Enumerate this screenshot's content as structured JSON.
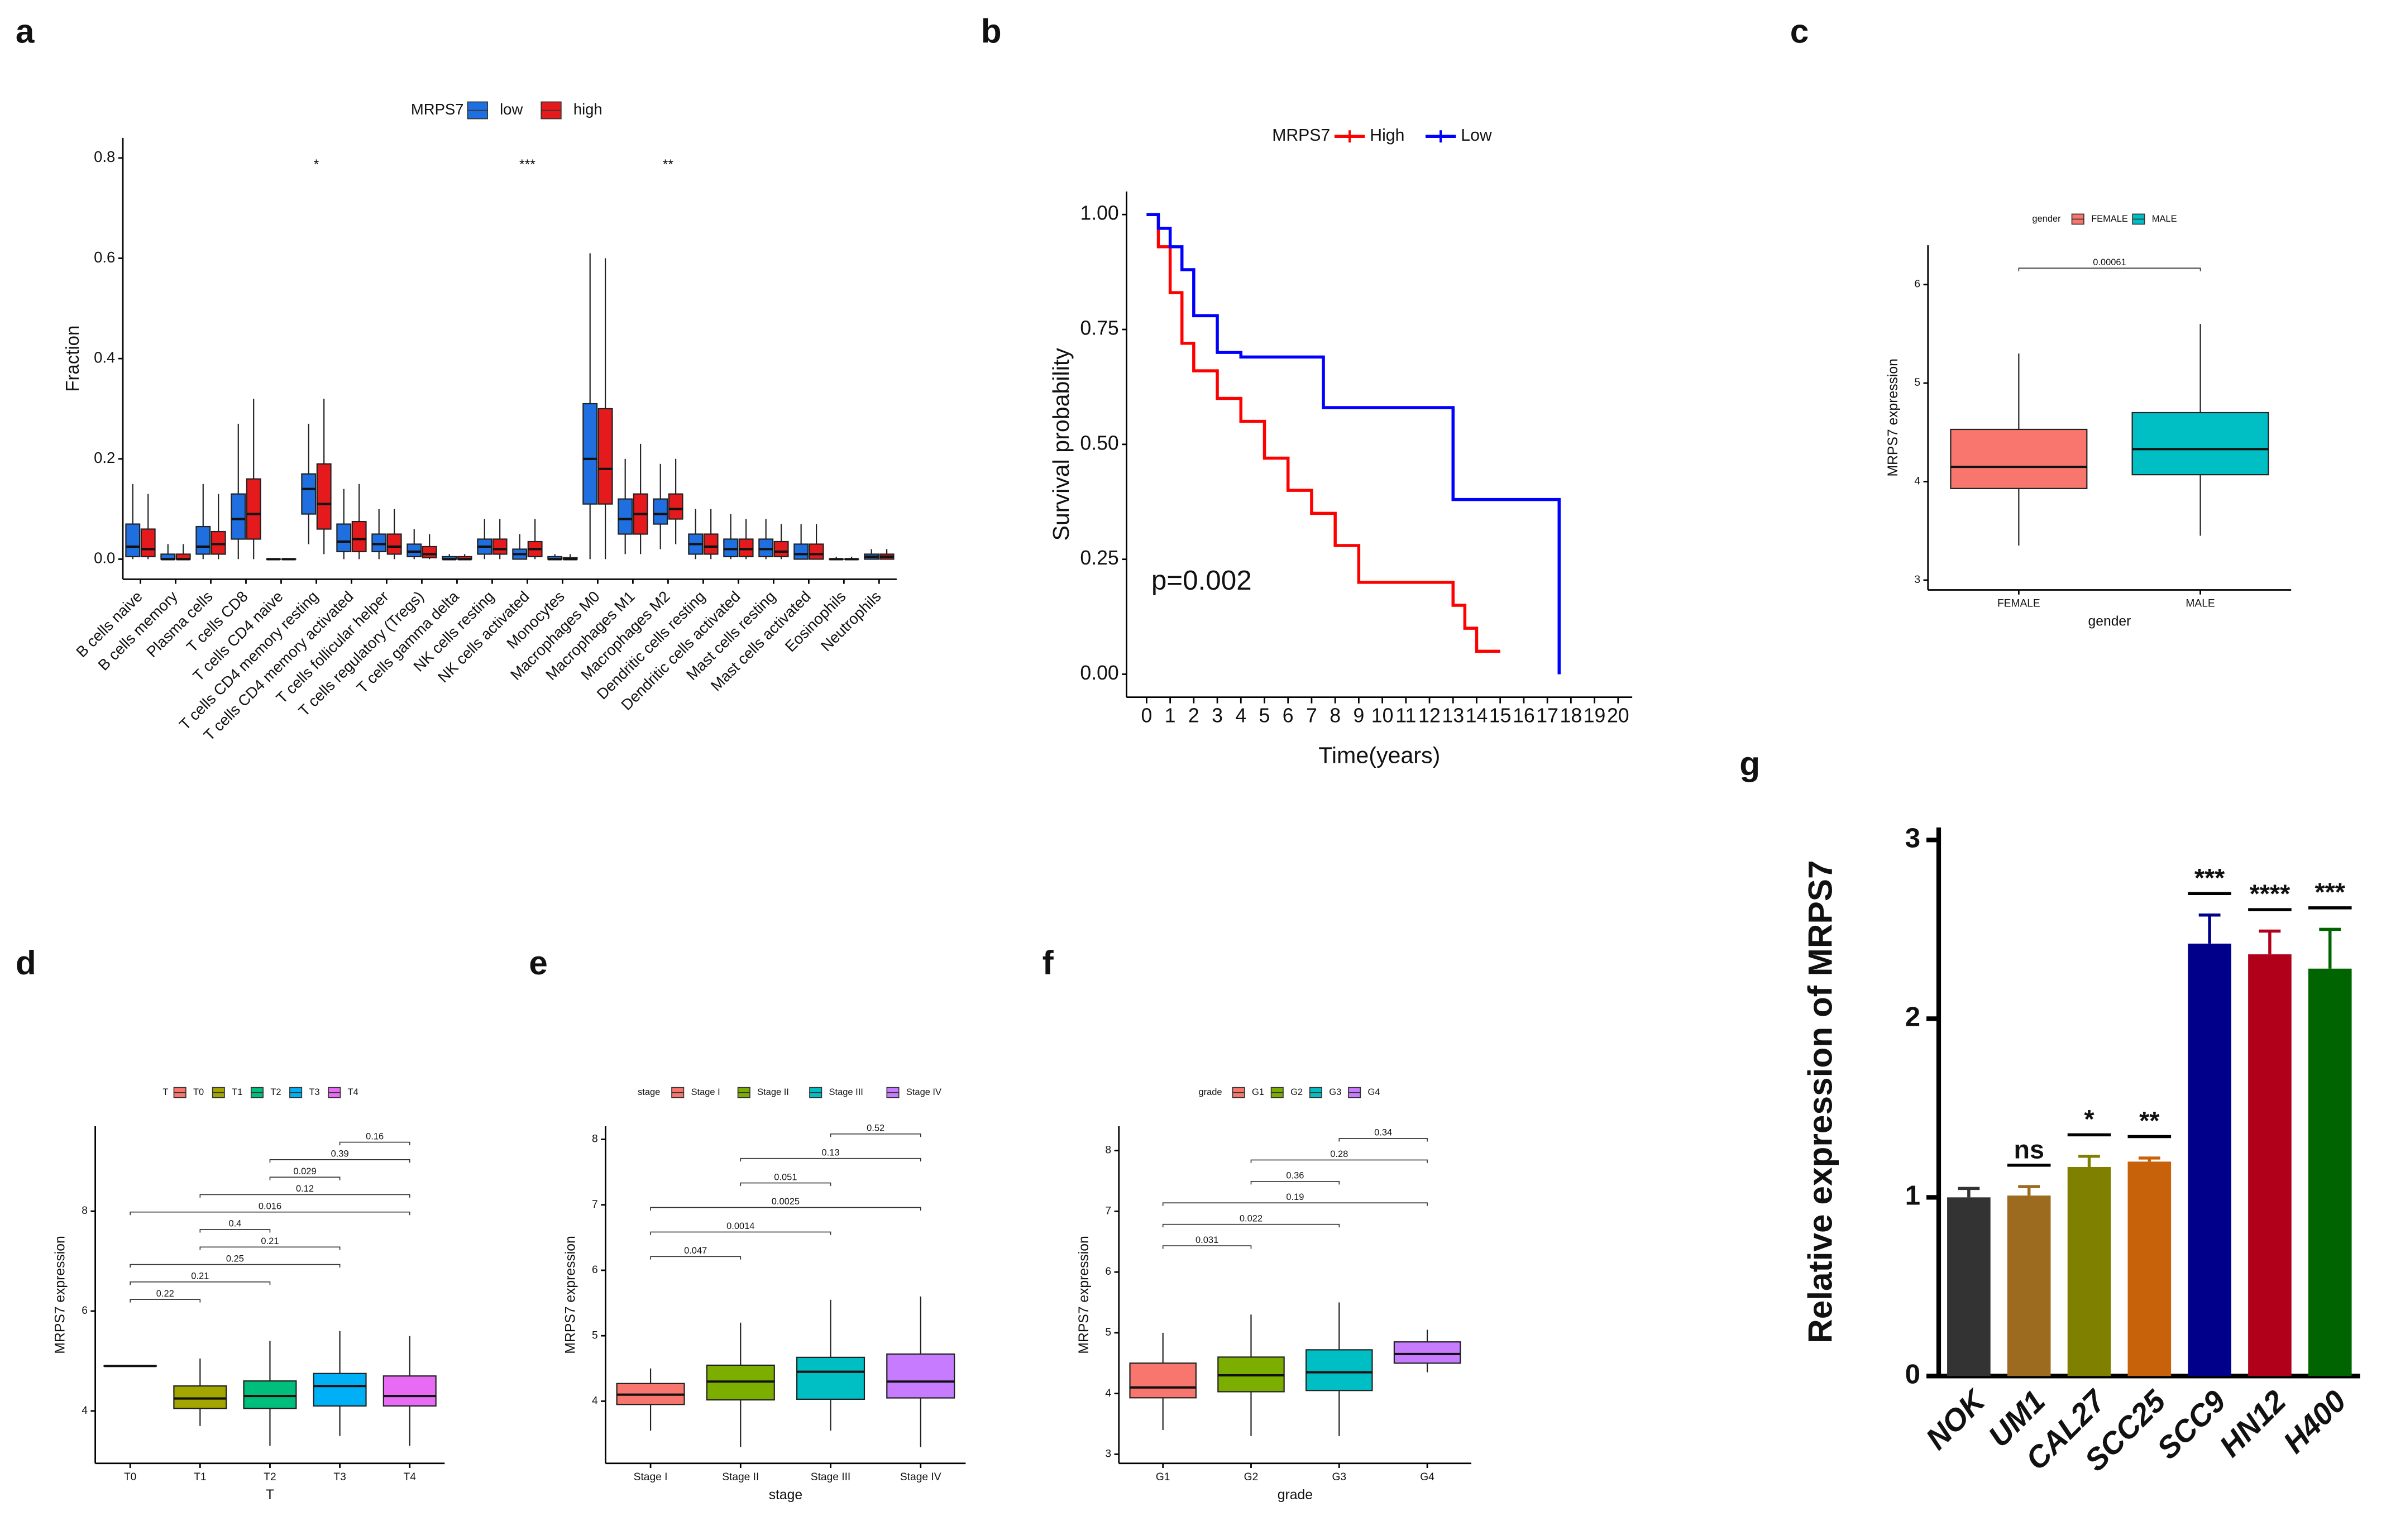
{
  "chart_data": [
    {
      "type": "box",
      "panel": "a",
      "legend_title": "MRPS7",
      "ylabel": "Fraction",
      "categories": [
        "B cells naive",
        "B cells memory",
        "Plasma cells",
        "T cells CD8",
        "T cells CD4 naive",
        "T cells CD4 memory resting",
        "T cells CD4 memory activated",
        "T cells follicular helper",
        "T cells regulatory (Tregs)",
        "T cells gamma delta",
        "NK cells resting",
        "NK cells activated",
        "Monocytes",
        "Macrophages M0",
        "Macrophages M1",
        "Macrophages M2",
        "Dendritic cells resting",
        "Dendritic cells activated",
        "Mast cells resting",
        "Mast cells activated",
        "Eosinophils",
        "Neutrophils"
      ],
      "significance": [
        null,
        null,
        null,
        null,
        null,
        "*",
        null,
        null,
        null,
        null,
        null,
        "***",
        null,
        null,
        null,
        "**",
        null,
        null,
        null,
        null,
        null,
        null
      ],
      "ylim": [
        -0.04,
        0.84
      ],
      "yticks": [
        {
          "value": 0,
          "label": "0.0"
        },
        {
          "value": 0.2,
          "label": "0.2"
        },
        {
          "value": 0.4,
          "label": "0.4"
        },
        {
          "value": 0.6,
          "label": "0.6"
        },
        {
          "value": 0.8,
          "label": "0.8"
        }
      ],
      "series": [
        {
          "name": "low",
          "color": "#1f6fe0",
          "boxes": [
            {
              "whislo": 0,
              "q1": 0.005,
              "med": 0.025,
              "q3": 0.07,
              "whishi": 0.15
            },
            {
              "whislo": 0,
              "q1": 0,
              "med": 0,
              "q3": 0.01,
              "whishi": 0.03
            },
            {
              "whislo": 0,
              "q1": 0.01,
              "med": 0.025,
              "q3": 0.065,
              "whishi": 0.15
            },
            {
              "whislo": 0,
              "q1": 0.04,
              "med": 0.08,
              "q3": 0.13,
              "whishi": 0.27
            },
            {
              "whislo": 0,
              "q1": 0,
              "med": 0,
              "q3": 0,
              "whishi": 0
            },
            {
              "whislo": 0.03,
              "q1": 0.09,
              "med": 0.14,
              "q3": 0.17,
              "whishi": 0.27
            },
            {
              "whislo": 0,
              "q1": 0.015,
              "med": 0.035,
              "q3": 0.07,
              "whishi": 0.14
            },
            {
              "whislo": 0,
              "q1": 0.015,
              "med": 0.03,
              "q3": 0.05,
              "whishi": 0.1
            },
            {
              "whislo": 0,
              "q1": 0.005,
              "med": 0.015,
              "q3": 0.03,
              "whishi": 0.06
            },
            {
              "whislo": 0,
              "q1": 0,
              "med": 0,
              "q3": 0.005,
              "whishi": 0.01
            },
            {
              "whislo": 0,
              "q1": 0.01,
              "med": 0.025,
              "q3": 0.04,
              "whishi": 0.08
            },
            {
              "whislo": 0,
              "q1": 0,
              "med": 0.01,
              "q3": 0.02,
              "whishi": 0.05
            },
            {
              "whislo": 0,
              "q1": 0,
              "med": 0,
              "q3": 0.005,
              "whishi": 0.01
            },
            {
              "whislo": 0,
              "q1": 0.11,
              "med": 0.2,
              "q3": 0.31,
              "whishi": 0.61
            },
            {
              "whislo": 0.01,
              "q1": 0.05,
              "med": 0.08,
              "q3": 0.12,
              "whishi": 0.2
            },
            {
              "whislo": 0.02,
              "q1": 0.07,
              "med": 0.09,
              "q3": 0.12,
              "whishi": 0.19
            },
            {
              "whislo": 0,
              "q1": 0.01,
              "med": 0.03,
              "q3": 0.05,
              "whishi": 0.1
            },
            {
              "whislo": 0,
              "q1": 0.005,
              "med": 0.02,
              "q3": 0.04,
              "whishi": 0.09
            },
            {
              "whislo": 0,
              "q1": 0.005,
              "med": 0.02,
              "q3": 0.04,
              "whishi": 0.08
            },
            {
              "whislo": 0,
              "q1": 0,
              "med": 0.01,
              "q3": 0.03,
              "whishi": 0.07
            },
            {
              "whislo": 0,
              "q1": 0,
              "med": 0,
              "q3": 0,
              "whishi": 0.005
            },
            {
              "whislo": 0,
              "q1": 0,
              "med": 0.005,
              "q3": 0.01,
              "whishi": 0.02
            }
          ]
        },
        {
          "name": "high",
          "color": "#e41a1c",
          "boxes": [
            {
              "whislo": 0,
              "q1": 0.005,
              "med": 0.02,
              "q3": 0.06,
              "whishi": 0.13
            },
            {
              "whislo": 0,
              "q1": 0,
              "med": 0,
              "q3": 0.01,
              "whishi": 0.03
            },
            {
              "whislo": 0,
              "q1": 0.01,
              "med": 0.03,
              "q3": 0.055,
              "whishi": 0.13
            },
            {
              "whislo": 0,
              "q1": 0.04,
              "med": 0.09,
              "q3": 0.16,
              "whishi": 0.32
            },
            {
              "whislo": 0,
              "q1": 0,
              "med": 0,
              "q3": 0,
              "whishi": 0
            },
            {
              "whislo": 0.01,
              "q1": 0.06,
              "med": 0.11,
              "q3": 0.19,
              "whishi": 0.32
            },
            {
              "whislo": 0,
              "q1": 0.015,
              "med": 0.04,
              "q3": 0.075,
              "whishi": 0.15
            },
            {
              "whislo": 0,
              "q1": 0.01,
              "med": 0.025,
              "q3": 0.05,
              "whishi": 0.1
            },
            {
              "whislo": 0,
              "q1": 0.003,
              "med": 0.01,
              "q3": 0.025,
              "whishi": 0.05
            },
            {
              "whislo": 0,
              "q1": 0,
              "med": 0,
              "q3": 0.005,
              "whishi": 0.01
            },
            {
              "whislo": 0,
              "q1": 0.01,
              "med": 0.02,
              "q3": 0.04,
              "whishi": 0.08
            },
            {
              "whislo": 0,
              "q1": 0.005,
              "med": 0.02,
              "q3": 0.035,
              "whishi": 0.08
            },
            {
              "whislo": 0,
              "q1": 0,
              "med": 0,
              "q3": 0.003,
              "whishi": 0.01
            },
            {
              "whislo": 0,
              "q1": 0.11,
              "med": 0.18,
              "q3": 0.3,
              "whishi": 0.6
            },
            {
              "whislo": 0.01,
              "q1": 0.05,
              "med": 0.09,
              "q3": 0.13,
              "whishi": 0.23
            },
            {
              "whislo": 0.03,
              "q1": 0.08,
              "med": 0.1,
              "q3": 0.13,
              "whishi": 0.2
            },
            {
              "whislo": 0,
              "q1": 0.01,
              "med": 0.025,
              "q3": 0.05,
              "whishi": 0.1
            },
            {
              "whislo": 0,
              "q1": 0.005,
              "med": 0.02,
              "q3": 0.04,
              "whishi": 0.08
            },
            {
              "whislo": 0,
              "q1": 0.005,
              "med": 0.015,
              "q3": 0.035,
              "whishi": 0.07
            },
            {
              "whislo": 0,
              "q1": 0,
              "med": 0.01,
              "q3": 0.03,
              "whishi": 0.07
            },
            {
              "whislo": 0,
              "q1": 0,
              "med": 0,
              "q3": 0,
              "whishi": 0.005
            },
            {
              "whislo": 0,
              "q1": 0,
              "med": 0.005,
              "q3": 0.01,
              "whishi": 0.02
            }
          ]
        }
      ]
    },
    {
      "type": "line",
      "step": true,
      "panel": "b",
      "legend_title": "MRPS7",
      "xlabel": "Time(years)",
      "ylabel": "Survival probability",
      "annotation": "p=0.002",
      "xlim": [
        -0.85,
        20.6
      ],
      "xticks": [
        0,
        1,
        2,
        3,
        4,
        5,
        6,
        7,
        8,
        9,
        10,
        11,
        12,
        13,
        14,
        15,
        16,
        17,
        18,
        19,
        20
      ],
      "ylim": [
        -0.05,
        1.05
      ],
      "yticks": [
        {
          "value": 0,
          "label": "0.00"
        },
        {
          "value": 0.25,
          "label": "0.25"
        },
        {
          "value": 0.5,
          "label": "0.50"
        },
        {
          "value": 0.75,
          "label": "0.75"
        },
        {
          "value": 1,
          "label": "1.00"
        }
      ],
      "series": [
        {
          "name": "High",
          "color": "#ff0000",
          "x": [
            0,
            0.5,
            1,
            1.5,
            2,
            3,
            4,
            5,
            6,
            7,
            8,
            9,
            13,
            13.5,
            14,
            15
          ],
          "values": [
            1,
            0.93,
            0.83,
            0.72,
            0.66,
            0.6,
            0.55,
            0.47,
            0.4,
            0.35,
            0.28,
            0.2,
            0.15,
            0.1,
            0.05,
            0.05
          ]
        },
        {
          "name": "Low",
          "color": "#0000ff",
          "x": [
            0,
            0.5,
            1,
            1.5,
            2,
            3,
            4,
            7.5,
            13,
            17.5,
            17.5
          ],
          "values": [
            1,
            0.97,
            0.93,
            0.88,
            0.78,
            0.7,
            0.69,
            0.58,
            0.38,
            0.38,
            0
          ]
        }
      ]
    },
    {
      "type": "box",
      "panel": "c",
      "legend_title": "gender",
      "xlabel": "gender",
      "ylabel": "MRPS7 expression",
      "categories": [
        "FEMALE",
        "MALE"
      ],
      "colors": [
        "#f8766d",
        "#00bfc4"
      ],
      "ylim": [
        2.9,
        6.4
      ],
      "yticks": [
        3,
        4,
        5,
        6
      ],
      "boxes": [
        {
          "whislo": 3.35,
          "q1": 3.93,
          "med": 4.15,
          "q3": 4.53,
          "whishi": 5.3
        },
        {
          "whislo": 3.45,
          "q1": 4.07,
          "med": 4.33,
          "q3": 4.7,
          "whishi": 5.6
        }
      ],
      "comparisons": [
        {
          "groups": [
            0,
            1
          ],
          "p": 0.00061
        }
      ]
    },
    {
      "type": "box",
      "panel": "d",
      "legend_title": "T",
      "xlabel": "T",
      "ylabel": "MRPS7 expression",
      "categories": [
        "T0",
        "T1",
        "T2",
        "T3",
        "T4"
      ],
      "colors": [
        "#f8766d",
        "#a3a500",
        "#00bf7d",
        "#00b0f6",
        "#e76bf3"
      ],
      "ylim": [
        2.95,
        9.7
      ],
      "yticks": [
        4,
        6,
        8
      ],
      "boxes": [
        {
          "whislo": 4.9,
          "q1": 4.9,
          "med": 4.9,
          "q3": 4.9,
          "whishi": 4.9
        },
        {
          "whislo": 3.7,
          "q1": 4.05,
          "med": 4.25,
          "q3": 4.5,
          "whishi": 5.05
        },
        {
          "whislo": 3.3,
          "q1": 4.05,
          "med": 4.3,
          "q3": 4.6,
          "whishi": 5.4
        },
        {
          "whislo": 3.5,
          "q1": 4.1,
          "med": 4.5,
          "q3": 4.75,
          "whishi": 5.6
        },
        {
          "whislo": 3.3,
          "q1": 4.1,
          "med": 4.3,
          "q3": 4.7,
          "whishi": 5.5
        }
      ],
      "comparisons": [
        {
          "groups": [
            0,
            1
          ],
          "p": 0.22
        },
        {
          "groups": [
            0,
            2
          ],
          "p": 0.21
        },
        {
          "groups": [
            0,
            3
          ],
          "p": 0.25
        },
        {
          "groups": [
            1,
            3
          ],
          "p": 0.21
        },
        {
          "groups": [
            1,
            2
          ],
          "p": 0.4
        },
        {
          "groups": [
            0,
            4
          ],
          "p": 0.016
        },
        {
          "groups": [
            1,
            4
          ],
          "p": 0.12
        },
        {
          "groups": [
            2,
            3
          ],
          "p": 0.029
        },
        {
          "groups": [
            2,
            4
          ],
          "p": 0.39
        },
        {
          "groups": [
            3,
            4
          ],
          "p": 0.16
        }
      ]
    },
    {
      "type": "box",
      "panel": "e",
      "legend_title": "stage",
      "xlabel": "stage",
      "ylabel": "MRPS7 expression",
      "categories": [
        "Stage I",
        "Stage II",
        "Stage III",
        "Stage IV"
      ],
      "colors": [
        "#f8766d",
        "#7cae00",
        "#00bfc4",
        "#c77cff"
      ],
      "ylim": [
        3.05,
        8.2
      ],
      "yticks": [
        4,
        5,
        6,
        7,
        8
      ],
      "boxes": [
        {
          "whislo": 3.55,
          "q1": 3.95,
          "med": 4.1,
          "q3": 4.27,
          "whishi": 4.5
        },
        {
          "whislo": 3.3,
          "q1": 4.02,
          "med": 4.3,
          "q3": 4.55,
          "whishi": 5.2
        },
        {
          "whislo": 3.55,
          "q1": 4.03,
          "med": 4.45,
          "q3": 4.67,
          "whishi": 5.55
        },
        {
          "whislo": 3.3,
          "q1": 4.05,
          "med": 4.3,
          "q3": 4.72,
          "whishi": 5.6
        }
      ],
      "comparisons": [
        {
          "groups": [
            0,
            1
          ],
          "p": 0.047
        },
        {
          "groups": [
            0,
            2
          ],
          "p": 0.0014
        },
        {
          "groups": [
            0,
            3
          ],
          "p": 0.0025
        },
        {
          "groups": [
            1,
            2
          ],
          "p": 0.051
        },
        {
          "groups": [
            1,
            3
          ],
          "p": 0.13
        },
        {
          "groups": [
            2,
            3
          ],
          "p": 0.52
        }
      ]
    },
    {
      "type": "box",
      "panel": "f",
      "legend_title": "grade",
      "xlabel": "grade",
      "ylabel": "MRPS7 expression",
      "categories": [
        "G1",
        "G2",
        "G3",
        "G4"
      ],
      "colors": [
        "#f8766d",
        "#7cae00",
        "#00bfc4",
        "#c77cff"
      ],
      "ylim": [
        2.85,
        8.4
      ],
      "yticks": [
        3,
        4,
        5,
        6,
        7,
        8
      ],
      "boxes": [
        {
          "whislo": 3.4,
          "q1": 3.93,
          "med": 4.1,
          "q3": 4.5,
          "whishi": 5.0
        },
        {
          "whislo": 3.3,
          "q1": 4.03,
          "med": 4.3,
          "q3": 4.6,
          "whishi": 5.3
        },
        {
          "whislo": 3.3,
          "q1": 4.05,
          "med": 4.35,
          "q3": 4.72,
          "whishi": 5.5
        },
        {
          "whislo": 4.35,
          "q1": 4.5,
          "med": 4.65,
          "q3": 4.85,
          "whishi": 5.05
        }
      ],
      "comparisons": [
        {
          "groups": [
            0,
            1
          ],
          "p": 0.031
        },
        {
          "groups": [
            0,
            2
          ],
          "p": 0.022
        },
        {
          "groups": [
            0,
            3
          ],
          "p": 0.19
        },
        {
          "groups": [
            1,
            2
          ],
          "p": 0.36
        },
        {
          "groups": [
            1,
            3
          ],
          "p": 0.28
        },
        {
          "groups": [
            2,
            3
          ],
          "p": 0.34
        }
      ]
    },
    {
      "type": "bar",
      "panel": "g",
      "ylabel": "Relative expression of MRPS7",
      "categories": [
        "NOK",
        "UM1",
        "CAL27",
        "SCC25",
        "SCC9",
        "HN12",
        "H400"
      ],
      "values": [
        1.0,
        1.01,
        1.17,
        1.2,
        2.42,
        2.36,
        2.28
      ],
      "errors": [
        0.05,
        0.05,
        0.06,
        0.02,
        0.16,
        0.13,
        0.22
      ],
      "colors": [
        "#333333",
        "#9c6b20",
        "#808000",
        "#c8620a",
        "#00008b",
        "#b0001a",
        "#006400"
      ],
      "significance": [
        null,
        "ns",
        "*",
        "**",
        "***",
        "****",
        "***"
      ],
      "ylim": [
        0,
        3.07
      ],
      "yticks": [
        0,
        1,
        2,
        3
      ]
    }
  ]
}
